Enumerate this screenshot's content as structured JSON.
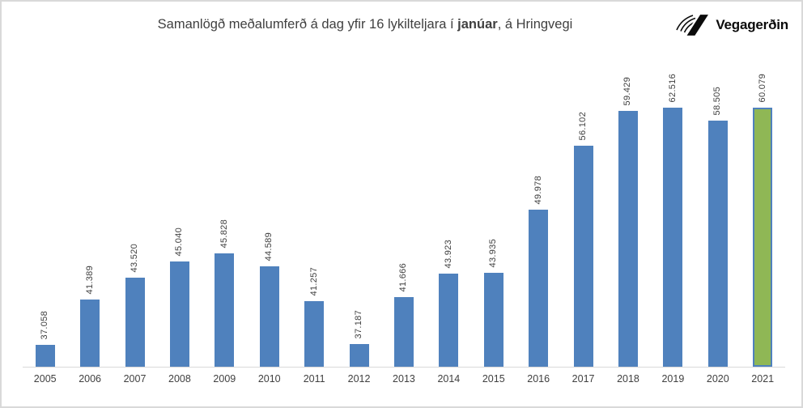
{
  "frame": {
    "background": "#ffffff",
    "border_color": "#d9d9d9"
  },
  "header": {
    "title_prefix": "Samanlögð meðalumferð á dag yfir 16 lykilteljara í ",
    "title_bold": "janúar",
    "title_suffix": ", á Hringvegi",
    "logo_text": "Vegagerðin"
  },
  "chart_data": {
    "type": "bar",
    "title": "Samanlögð meðalumferð á dag yfir 16 lykilteljara í janúar, á Hringvegi",
    "xlabel": "",
    "ylabel": "",
    "grid": false,
    "legend": "none",
    "ylim": [
      35000,
      63000
    ],
    "categories": [
      "2005",
      "2006",
      "2007",
      "2008",
      "2009",
      "2010",
      "2011",
      "2012",
      "2013",
      "2014",
      "2015",
      "2016",
      "2017",
      "2018",
      "2019",
      "2020",
      "2021"
    ],
    "values": [
      37058,
      41389,
      43520,
      45040,
      45828,
      44589,
      41257,
      37187,
      41666,
      43923,
      43935,
      49978,
      56102,
      59429,
      62516,
      58505,
      60079
    ],
    "value_labels": [
      "37.058",
      "41.389",
      "43.520",
      "45.040",
      "45.828",
      "44.589",
      "41.257",
      "37.187",
      "41.666",
      "43.923",
      "43.935",
      "49.978",
      "56.102",
      "59.429",
      "62.516",
      "58.505",
      "60.079"
    ],
    "highlight_category": "2021",
    "bar_color": "#4F81BD",
    "highlight_bar_color": "#8FB755",
    "highlight_bar_border": "#4F81BD",
    "value_label_color": "#404040",
    "axis_label_color": "#404040",
    "axis_line_color": "#d9d9d9"
  }
}
